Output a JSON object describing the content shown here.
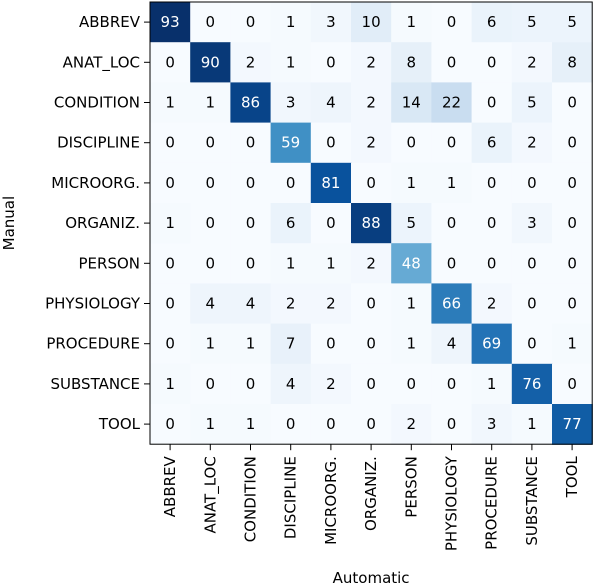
{
  "chart_data": {
    "type": "heatmap",
    "title": "",
    "xlabel": "Automatic",
    "ylabel": "Manual",
    "x_categories": [
      "ABBREV",
      "ANAT_LOC",
      "CONDITION",
      "DISCIPLINE",
      "MICROORG.",
      "ORGANIZ.",
      "PERSON",
      "PHYSIOLOGY",
      "PROCEDURE",
      "SUBSTANCE",
      "TOOL"
    ],
    "y_categories": [
      "ABBREV",
      "ANAT_LOC",
      "CONDITION",
      "DISCIPLINE",
      "MICROORG.",
      "ORGANIZ.",
      "PERSON",
      "PHYSIOLOGY",
      "PROCEDURE",
      "SUBSTANCE",
      "TOOL"
    ],
    "values": [
      [
        93,
        0,
        0,
        1,
        3,
        10,
        1,
        0,
        6,
        5,
        5
      ],
      [
        0,
        90,
        2,
        1,
        0,
        2,
        8,
        0,
        0,
        2,
        8
      ],
      [
        1,
        1,
        86,
        3,
        4,
        2,
        14,
        22,
        0,
        5,
        0
      ],
      [
        0,
        0,
        0,
        59,
        0,
        2,
        0,
        0,
        6,
        2,
        0
      ],
      [
        0,
        0,
        0,
        0,
        81,
        0,
        1,
        1,
        0,
        0,
        0
      ],
      [
        1,
        0,
        0,
        6,
        0,
        88,
        5,
        0,
        0,
        3,
        0
      ],
      [
        0,
        0,
        0,
        1,
        1,
        2,
        48,
        0,
        0,
        0,
        0
      ],
      [
        0,
        4,
        4,
        2,
        2,
        0,
        1,
        66,
        2,
        0,
        0
      ],
      [
        0,
        1,
        1,
        7,
        0,
        0,
        1,
        4,
        69,
        0,
        1
      ],
      [
        1,
        0,
        0,
        4,
        2,
        0,
        0,
        0,
        1,
        76,
        0
      ],
      [
        0,
        1,
        1,
        0,
        0,
        0,
        2,
        0,
        3,
        1,
        77
      ]
    ],
    "colormap": "Blues",
    "value_range": [
      0,
      93
    ],
    "colors": {
      "low": "#f7fbff",
      "high": "#08306b",
      "text_dark": "#000000",
      "text_light": "#ffffff"
    }
  }
}
